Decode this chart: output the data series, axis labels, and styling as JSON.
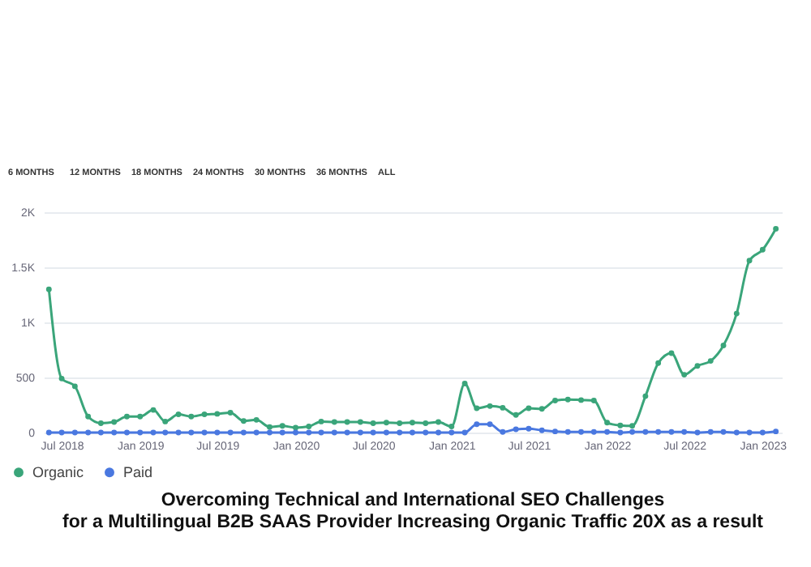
{
  "chart_data": {
    "type": "line",
    "title": "Overcoming Technical and International SEO Challenges\nfor a Multilingual B2B SAAS Provider Increasing Organic Traffic 20X as a result",
    "annotations": [
      "6 MONTHS",
      "12 MONTHS",
      "18 MONTHS",
      "24 MONTHS",
      "30 MONTHS",
      "36 MONTHS",
      "ALL"
    ],
    "x": [
      "2018-06",
      "2018-07",
      "2018-08",
      "2018-09",
      "2018-10",
      "2018-11",
      "2018-12",
      "2019-01",
      "2019-02",
      "2019-03",
      "2019-04",
      "2019-05",
      "2019-06",
      "2019-07",
      "2019-08",
      "2019-09",
      "2019-10",
      "2019-11",
      "2019-12",
      "2020-01",
      "2020-02",
      "2020-03",
      "2020-04",
      "2020-05",
      "2020-06",
      "2020-07",
      "2020-08",
      "2020-09",
      "2020-10",
      "2020-11",
      "2020-12",
      "2021-01",
      "2021-02",
      "2021-03",
      "2021-04",
      "2021-05",
      "2021-06",
      "2021-07",
      "2021-08",
      "2021-09",
      "2021-10",
      "2021-11",
      "2021-12",
      "2022-01",
      "2022-02",
      "2022-03",
      "2022-04",
      "2022-05",
      "2022-06",
      "2022-07",
      "2022-08",
      "2022-09",
      "2022-10",
      "2022-11",
      "2022-12",
      "2023-01",
      "2023-02"
    ],
    "series": [
      {
        "name": "Organic",
        "color": "#3aa57a",
        "values": [
          1300,
          490,
          420,
          145,
          85,
          95,
          145,
          145,
          205,
          100,
          165,
          145,
          165,
          170,
          180,
          105,
          115,
          50,
          60,
          45,
          55,
          100,
          95,
          95,
          95,
          85,
          90,
          85,
          90,
          85,
          95,
          55,
          445,
          220,
          240,
          225,
          160,
          220,
          215,
          290,
          300,
          295,
          290,
          90,
          65,
          60,
          330,
          630,
          720,
          525,
          605,
          650,
          790,
          1080,
          1560,
          1660,
          1850
        ]
      },
      {
        "name": "Paid",
        "color": "#4a78e0",
        "values": [
          0,
          0,
          0,
          0,
          0,
          0,
          0,
          0,
          0,
          0,
          0,
          0,
          0,
          0,
          0,
          0,
          0,
          0,
          0,
          0,
          0,
          0,
          0,
          0,
          0,
          0,
          0,
          0,
          0,
          0,
          0,
          0,
          0,
          75,
          75,
          5,
          30,
          35,
          20,
          10,
          5,
          5,
          5,
          5,
          0,
          5,
          5,
          5,
          5,
          5,
          0,
          5,
          5,
          0,
          0,
          0,
          10
        ]
      }
    ],
    "xlim": [
      "2018-05-20",
      "2023-02-15"
    ],
    "xticks": [
      {
        "value": "2018-07",
        "label": "Jul 2018"
      },
      {
        "value": "2019-01",
        "label": "Jan 2019"
      },
      {
        "value": "2019-07",
        "label": "Jul 2019"
      },
      {
        "value": "2020-01",
        "label": "Jan 2020"
      },
      {
        "value": "2020-07",
        "label": "Jul 2020"
      },
      {
        "value": "2021-01",
        "label": "Jan 2021"
      },
      {
        "value": "2021-07",
        "label": "Jul 2021"
      },
      {
        "value": "2022-01",
        "label": "Jan 2022"
      },
      {
        "value": "2022-07",
        "label": "Jul 2022"
      },
      {
        "value": "2023-01",
        "label": "Jan 2023"
      }
    ],
    "ylim": [
      0,
      2000
    ],
    "yticks": [
      0,
      500,
      {
        "value": 1000,
        "label": "1K"
      },
      {
        "value": 1500,
        "label": "1.5K"
      },
      {
        "value": 2000,
        "label": "2K"
      }
    ],
    "grid": "y",
    "legend": "bottom left",
    "marker": "circle",
    "line_style": "solid"
  }
}
